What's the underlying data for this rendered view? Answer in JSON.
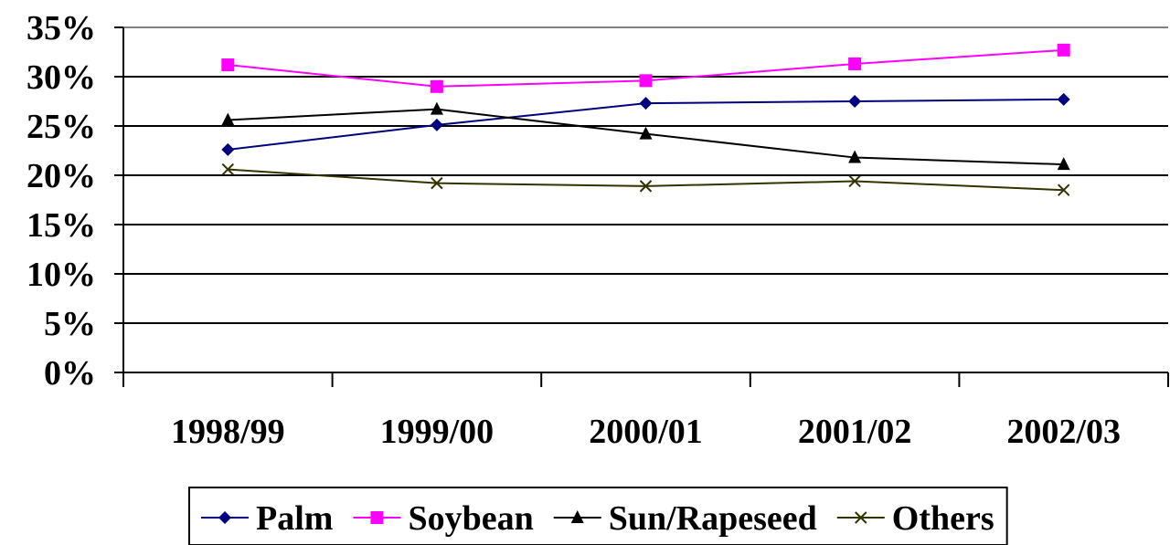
{
  "chart_data": {
    "type": "line",
    "categories": [
      "1998/99",
      "1999/00",
      "2000/01",
      "2001/02",
      "2002/03"
    ],
    "yticks": [
      "0%",
      "5%",
      "10%",
      "15%",
      "20%",
      "25%",
      "30%",
      "35%"
    ],
    "ylim": [
      0,
      35
    ],
    "unit": "%",
    "grid": true,
    "legend_position": "bottom",
    "series": [
      {
        "name": "Palm",
        "values": [
          22.6,
          25.1,
          27.3,
          27.5,
          27.7
        ],
        "color": "#000080",
        "marker": "diamond"
      },
      {
        "name": "Soybean",
        "values": [
          31.2,
          29.0,
          29.6,
          31.3,
          32.7
        ],
        "color": "#ff00ff",
        "marker": "square"
      },
      {
        "name": "Sun/Rapeseed",
        "values": [
          25.6,
          26.7,
          24.2,
          21.8,
          21.1
        ],
        "color": "#000000",
        "marker": "triangle"
      },
      {
        "name": "Others",
        "values": [
          20.6,
          19.2,
          18.9,
          19.4,
          18.5
        ],
        "color": "#333300",
        "marker": "x"
      }
    ]
  }
}
